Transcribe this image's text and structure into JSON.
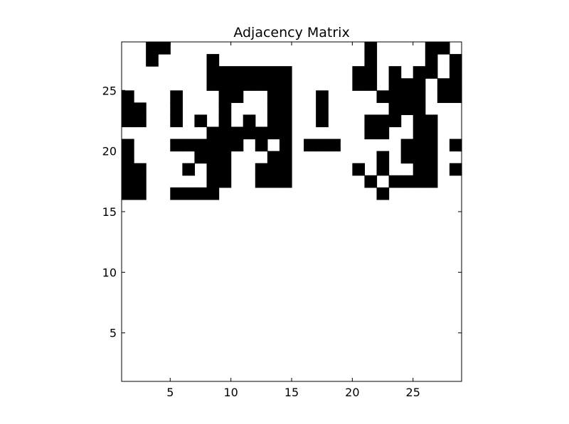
{
  "chart_data": {
    "type": "heatmap",
    "title": "Adjacency Matrix",
    "xlabel": "",
    "ylabel": "",
    "xlim": [
      1,
      29
    ],
    "ylim": [
      1,
      29
    ],
    "x_ticks": [
      5,
      10,
      15,
      20,
      25
    ],
    "y_ticks": [
      5,
      10,
      15,
      20,
      25
    ],
    "colormap": {
      "0": "#ffffff",
      "1": "#000000"
    },
    "grid": false,
    "rows_top_to_bottom": [
      "0011000000000000000010000110",
      "0010000100000000000010000101",
      "0000000111111100000110101101",
      "0000000111111100000110111011",
      "1000100011001100100001111011",
      "1100100010001100100000111000",
      "1100101010101100100011101100",
      "0000000111111100000011001100",
      "1000111111010101110000011101",
      "1000001110001100000001011100",
      "1100010110011100000101001101",
      "1100000110011100000010111100",
      "1100111100000000000001000000",
      "0000000000000000000000000000",
      "0000000000000000000000000000",
      "0000000000000000000000000000",
      "0000000000000000000000000000",
      "0000000000000000000000000000",
      "0000000000000000000000000000",
      "0000000000000000000000000000",
      "0000000000000000000000000000",
      "0000000000000000000000000000",
      "0000000000000000000000000000",
      "0000000000000000000000000000",
      "0000000000000000000000000000",
      "0000000000000000000000000000",
      "0000000000000000000000000000",
      "0000000000000000000000000000"
    ]
  }
}
